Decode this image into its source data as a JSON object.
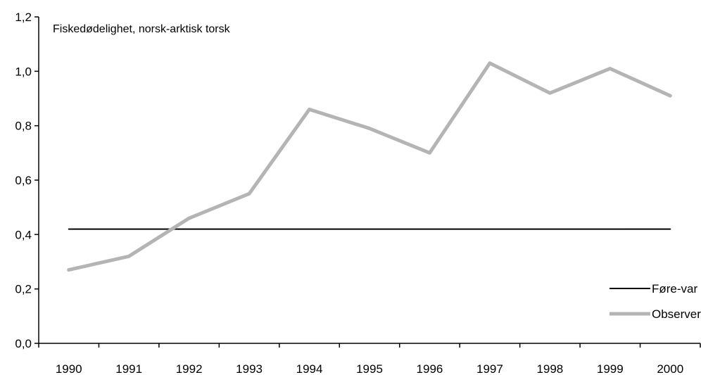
{
  "chart_data": {
    "type": "line",
    "title": "Fiskedødelighet, norsk-arktisk torsk",
    "xlabel": "",
    "ylabel": "",
    "categories": [
      "1990",
      "1991",
      "1992",
      "1993",
      "1994",
      "1995",
      "1996",
      "1997",
      "1998",
      "1999",
      "2000"
    ],
    "ylim": [
      0,
      1.2
    ],
    "yticks": [
      "0,0",
      "0,2",
      "0,4",
      "0,6",
      "0,8",
      "1,0",
      "1,2"
    ],
    "grid": false,
    "legend_position": "bottom-right",
    "series": [
      {
        "name": "Føre-var",
        "color": "#000000",
        "values": [
          0.42,
          0.42,
          0.42,
          0.42,
          0.42,
          0.42,
          0.42,
          0.42,
          0.42,
          0.42,
          0.42
        ]
      },
      {
        "name": "Observert",
        "color": "#b4b4b4",
        "values": [
          0.27,
          0.32,
          0.46,
          0.55,
          0.86,
          0.79,
          0.7,
          1.03,
          0.92,
          1.01,
          0.91
        ]
      }
    ]
  }
}
